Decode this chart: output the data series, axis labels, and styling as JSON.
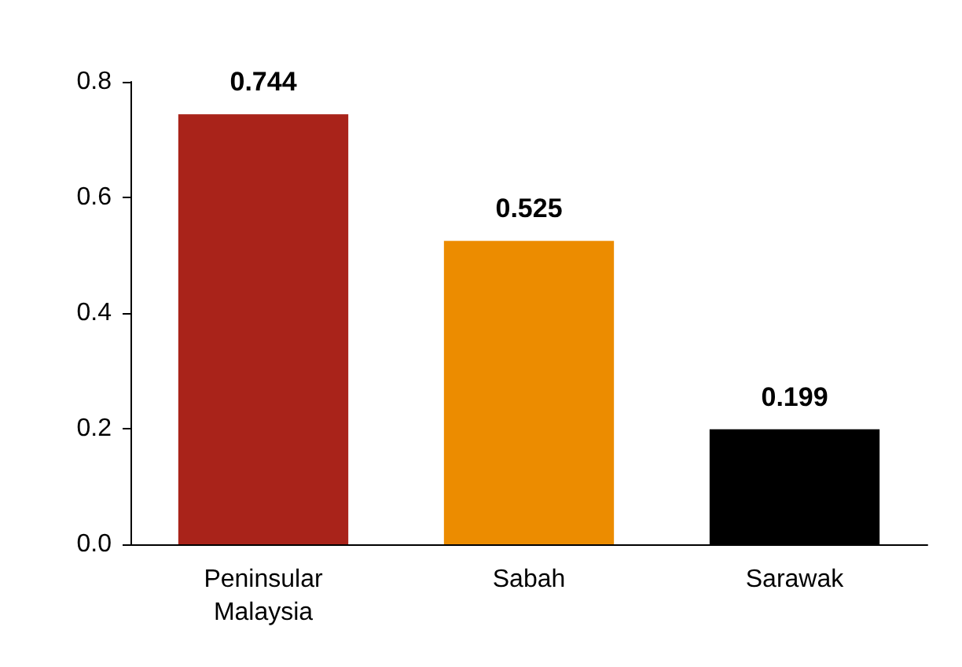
{
  "chart_data": {
    "type": "bar",
    "categories": [
      "Peninsular\nMalaysia",
      "Sabah",
      "Sarawak"
    ],
    "values": [
      0.744,
      0.525,
      0.199
    ],
    "colors": [
      "#a9231a",
      "#ec8c00",
      "#000000"
    ],
    "ylim": [
      0,
      0.8
    ],
    "yticks": [
      {
        "value": 0,
        "label": "0.0"
      },
      0.2,
      0.4,
      0.6,
      0.8
    ],
    "data_labels": true,
    "grid": false
  }
}
